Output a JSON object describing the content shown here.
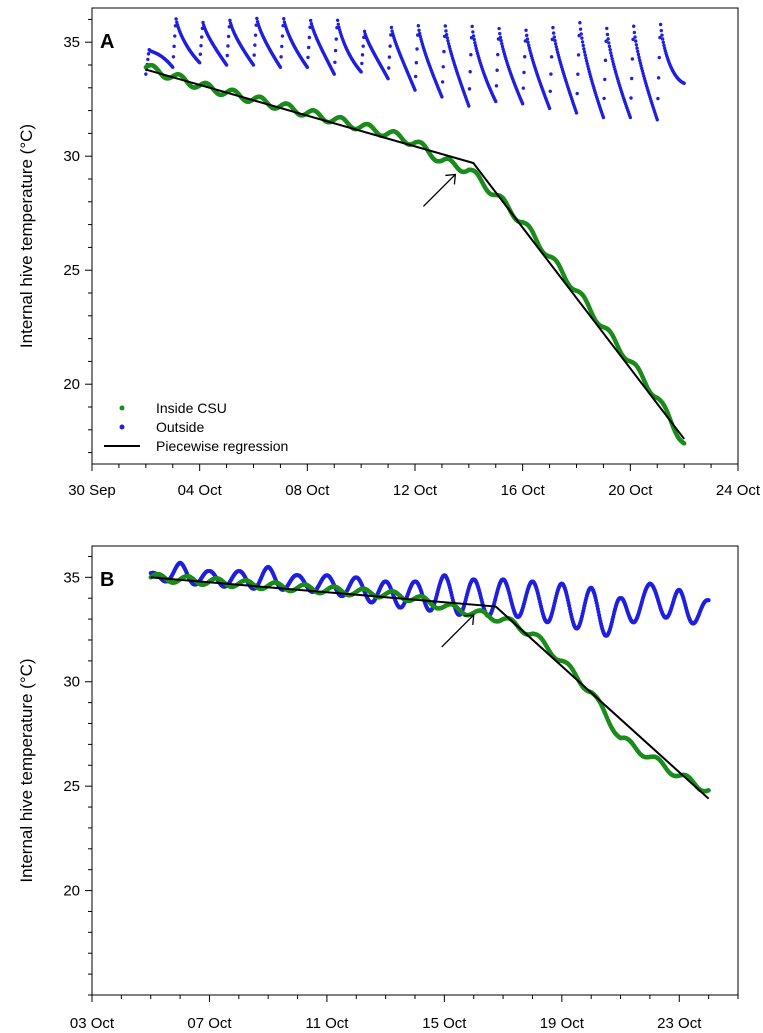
{
  "chart_data": [
    {
      "panel": "A",
      "type": "scatter",
      "ylabel": "Internal hive temperature (°C)",
      "xlabel": "",
      "xlim": [
        "2012-09-30",
        "2012-10-24"
      ],
      "ylim": [
        16.5,
        36.5
      ],
      "x_ticks": [
        "2012-09-30",
        "2012-10-04",
        "2012-10-08",
        "2012-10-12",
        "2012-10-16",
        "2012-10-20",
        "2012-10-24"
      ],
      "x_tick_labels": [
        "30 Sep",
        "04 Oct",
        "08 Oct",
        "12 Oct",
        "16 Oct",
        "20 Oct",
        "24 Oct"
      ],
      "y_ticks": [
        20,
        25,
        30,
        35
      ],
      "y_tick_labels": [
        "20",
        "25",
        "30",
        "35"
      ],
      "legend": [
        "Inside CSU",
        "Outside",
        "Piecewise regression"
      ],
      "legend_position": "bottom-left",
      "grid": false,
      "colors": {
        "inside": "#1a8c1a",
        "outside": "#1f1fe0",
        "regression": "#000000"
      },
      "series": [
        {
          "name": "Inside CSU",
          "style": "dots",
          "x": [
            "2012-10-02",
            "2012-10-03",
            "2012-10-04",
            "2012-10-05",
            "2012-10-06",
            "2012-10-07",
            "2012-10-08",
            "2012-10-09",
            "2012-10-10",
            "2012-10-11",
            "2012-10-12",
            "2012-10-13",
            "2012-10-14",
            "2012-10-15",
            "2012-10-16",
            "2012-10-17",
            "2012-10-18",
            "2012-10-19",
            "2012-10-20",
            "2012-10-21",
            "2012-10-22"
          ],
          "y": [
            33.9,
            33.5,
            33.1,
            32.8,
            32.5,
            32.2,
            31.9,
            31.6,
            31.3,
            31.0,
            30.6,
            29.8,
            29.4,
            28.3,
            27.1,
            25.6,
            24.1,
            22.5,
            21.0,
            19.4,
            17.4
          ]
        },
        {
          "name": "Outside",
          "style": "dots",
          "x": [
            "2012-10-02",
            "2012-10-03",
            "2012-10-04",
            "2012-10-05",
            "2012-10-06",
            "2012-10-07",
            "2012-10-08",
            "2012-10-09",
            "2012-10-10",
            "2012-10-11",
            "2012-10-12",
            "2012-10-13",
            "2012-10-14",
            "2012-10-15",
            "2012-10-16",
            "2012-10-17",
            "2012-10-18",
            "2012-10-19",
            "2012-10-20",
            "2012-10-21",
            "2012-10-22"
          ],
          "y_peak": [
            34.5,
            36.1,
            35.9,
            36.0,
            36.1,
            36.1,
            36.0,
            36.1,
            35.5,
            35.7,
            35.8,
            35.8,
            35.8,
            35.7,
            35.6,
            35.7,
            36.0,
            35.7,
            35.8,
            35.9,
            35.8
          ],
          "y_trough": [
            33.6,
            33.9,
            34.1,
            34.0,
            34.0,
            33.9,
            33.9,
            33.6,
            33.7,
            33.4,
            32.9,
            32.6,
            32.2,
            32.4,
            32.3,
            32.1,
            31.9,
            31.7,
            31.7,
            31.6,
            33.2
          ]
        },
        {
          "name": "Piecewise regression",
          "style": "line",
          "x": [
            "2012-10-02",
            "2012-10-14T04:00",
            "2012-10-22"
          ],
          "y": [
            33.8,
            29.7,
            17.6
          ]
        }
      ],
      "annotations": [
        {
          "type": "arrow",
          "x": "2012-10-13T12:00",
          "y": 29.2
        }
      ]
    },
    {
      "panel": "B",
      "type": "scatter",
      "ylabel": "Internal hive temperature (°C)",
      "xlabel": "",
      "xlim": [
        "2012-10-03",
        "2012-10-25"
      ],
      "ylim": [
        15.0,
        36.5
      ],
      "x_ticks": [
        "2012-10-03",
        "2012-10-07",
        "2012-10-11",
        "2012-10-15",
        "2012-10-19",
        "2012-10-23"
      ],
      "x_tick_labels": [
        "03 Oct",
        "07 Oct",
        "11 Oct",
        "15 Oct",
        "19 Oct",
        "23 Oct"
      ],
      "y_ticks": [
        20,
        25,
        30,
        35
      ],
      "y_tick_labels": [
        "20",
        "25",
        "30",
        "35"
      ],
      "grid": false,
      "series": [
        {
          "name": "Inside CSU",
          "style": "dots",
          "x": [
            "2012-10-05",
            "2012-10-06",
            "2012-10-07",
            "2012-10-08",
            "2012-10-09",
            "2012-10-10",
            "2012-10-11",
            "2012-10-12",
            "2012-10-13",
            "2012-10-14",
            "2012-10-15",
            "2012-10-16",
            "2012-10-17",
            "2012-10-18",
            "2012-10-19",
            "2012-10-20",
            "2012-10-21",
            "2012-10-22",
            "2012-10-23",
            "2012-10-24"
          ],
          "y": [
            35.0,
            34.9,
            34.8,
            34.7,
            34.6,
            34.5,
            34.4,
            34.3,
            34.2,
            34.0,
            33.6,
            33.3,
            33.0,
            32.3,
            31.0,
            29.5,
            27.3,
            26.4,
            25.5,
            24.8
          ]
        },
        {
          "name": "Outside",
          "style": "dots",
          "x": [
            "2012-10-05",
            "2012-10-06",
            "2012-10-07",
            "2012-10-08",
            "2012-10-09",
            "2012-10-10",
            "2012-10-11",
            "2012-10-12",
            "2012-10-13",
            "2012-10-14",
            "2012-10-15",
            "2012-10-16",
            "2012-10-17",
            "2012-10-18",
            "2012-10-19",
            "2012-10-20",
            "2012-10-21",
            "2012-10-22",
            "2012-10-23",
            "2012-10-24"
          ],
          "y_peak": [
            35.2,
            35.7,
            35.3,
            35.3,
            35.5,
            35.1,
            35.1,
            35.0,
            34.8,
            34.8,
            35.1,
            34.9,
            34.9,
            34.8,
            34.7,
            34.5,
            34.0,
            34.7,
            34.4,
            33.9
          ],
          "y_trough": [
            34.9,
            34.7,
            34.6,
            34.5,
            34.4,
            34.4,
            34.2,
            34.0,
            33.6,
            33.5,
            33.3,
            33.1,
            33.2,
            33.0,
            32.7,
            32.4,
            32.0,
            33.8,
            32.4,
            33.2
          ]
        },
        {
          "name": "Piecewise regression",
          "style": "line",
          "x": [
            "2012-10-05",
            "2012-10-16T18:00",
            "2012-10-24"
          ],
          "y": [
            35.0,
            33.6,
            24.4
          ]
        }
      ],
      "annotations": [
        {
          "type": "arrow",
          "x": "2012-10-16",
          "y": 33.2
        }
      ]
    }
  ]
}
